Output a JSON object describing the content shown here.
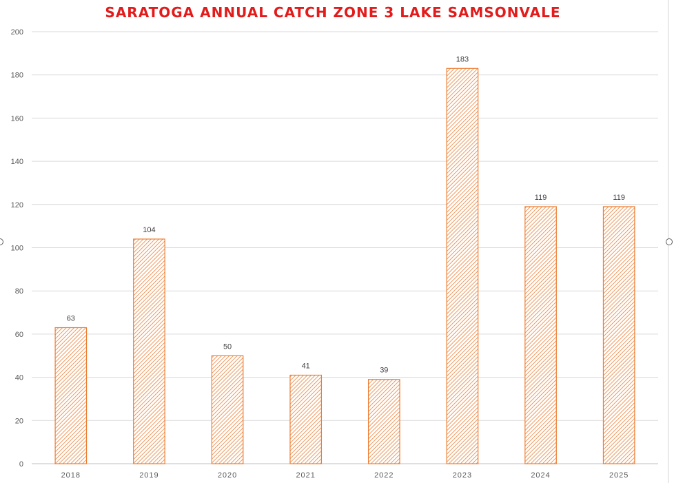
{
  "chart_data": {
    "type": "bar",
    "title": "SARATOGA ANNUAL CATCH ZONE 3 LAKE SAMSONVALE",
    "categories": [
      "2018",
      "2019",
      "2020",
      "2021",
      "2022",
      "2023",
      "2024",
      "2025"
    ],
    "values": [
      63,
      104,
      50,
      41,
      39,
      183,
      119,
      119
    ],
    "ylim": [
      0,
      200
    ],
    "yticks": [
      0,
      20,
      40,
      60,
      80,
      100,
      120,
      140,
      160,
      180,
      200
    ],
    "xlabel": "",
    "ylabel": "",
    "grid": true,
    "legend": "none",
    "data_labels": true,
    "bar_color": "#ed7d31",
    "title_color": "#e31b1b"
  }
}
